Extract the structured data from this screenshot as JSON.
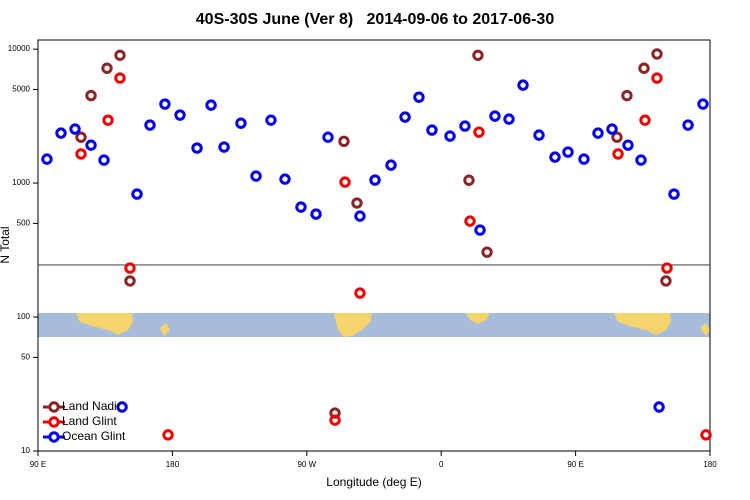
{
  "chart_data": {
    "type": "scatter",
    "title": "40S-30S June (Ver 8)   2014-09-06 to 2017-06-30",
    "x_label": "Longitude (deg E)",
    "y_label": "N Total",
    "log_y": true,
    "xlim": [
      90,
      540
    ],
    "ylim": [
      10,
      11700
    ],
    "xticks": [
      {
        "value": 90,
        "label": "90 E"
      },
      {
        "value": 180,
        "label": "180"
      },
      {
        "value": 270,
        "label": "90 W"
      },
      {
        "value": 360,
        "label": "0"
      },
      {
        "value": 450,
        "label": "90 E"
      },
      {
        "value": 540,
        "label": "180"
      }
    ],
    "yticks": [
      10,
      50,
      100,
      500,
      1000,
      5000,
      10000
    ],
    "reference_line": 245,
    "legend": "bottom-left",
    "series": [
      {
        "name": "Land Nadir",
        "color": "#8b2525",
        "x": [
          118.8,
          125.5,
          136.2,
          144.9,
          151.6,
          288.9,
          294.9,
          303.6,
          378.6,
          384.6,
          390.7,
          477.7,
          484.4,
          495.8,
          504.5,
          510.5
        ],
        "values": [
          2200,
          4500,
          7200,
          9000,
          186,
          19.2,
          2050,
          710,
          1050,
          9000,
          305,
          2200,
          4500,
          7200,
          9200,
          186
        ]
      },
      {
        "name": "Land Glint",
        "color": "#ee0000",
        "x": [
          118.8,
          136.9,
          144.9,
          151.6,
          177.1,
          288.9,
          295.6,
          305.6,
          379.3,
          385.3,
          478.4,
          496.5,
          504.5,
          511.2,
          537.3
        ],
        "values": [
          1650,
          2950,
          6080,
          232,
          13.2,
          17,
          1017,
          151,
          520,
          2400,
          1650,
          2950,
          6080,
          232,
          13.2
        ]
      },
      {
        "name": "Ocean Glint",
        "color": "#0000ee",
        "x": [
          96,
          105.4,
          114.8,
          125.5,
          134.2,
          146.3,
          156.3,
          165,
          175,
          185.1,
          196.5,
          205.9,
          214.6,
          225.9,
          236,
          246,
          255.4,
          266.1,
          276.2,
          284.2,
          305.6,
          315.7,
          326.4,
          335.8,
          345.1,
          353.8,
          365.9,
          375.9,
          386,
          396,
          405.4,
          414.8,
          425.5,
          436.2,
          444.9,
          455.6,
          465,
          474.4,
          485.1,
          493.8,
          505.9,
          515.9,
          525.3,
          535.3
        ],
        "values": [
          1510,
          2360,
          2530,
          1920,
          1485,
          21.3,
          828,
          2710,
          3890,
          3220,
          1825,
          3820,
          1857,
          2800,
          1128,
          2950,
          1071,
          662,
          587,
          2200,
          567,
          1053,
          1362,
          3110,
          4380,
          2487,
          2243,
          2663,
          446,
          3162,
          3003,
          5386,
          2281,
          1563,
          1704,
          1510,
          2360,
          2530,
          1920,
          1485,
          21.3,
          828,
          2710,
          3890
        ]
      }
    ]
  }
}
